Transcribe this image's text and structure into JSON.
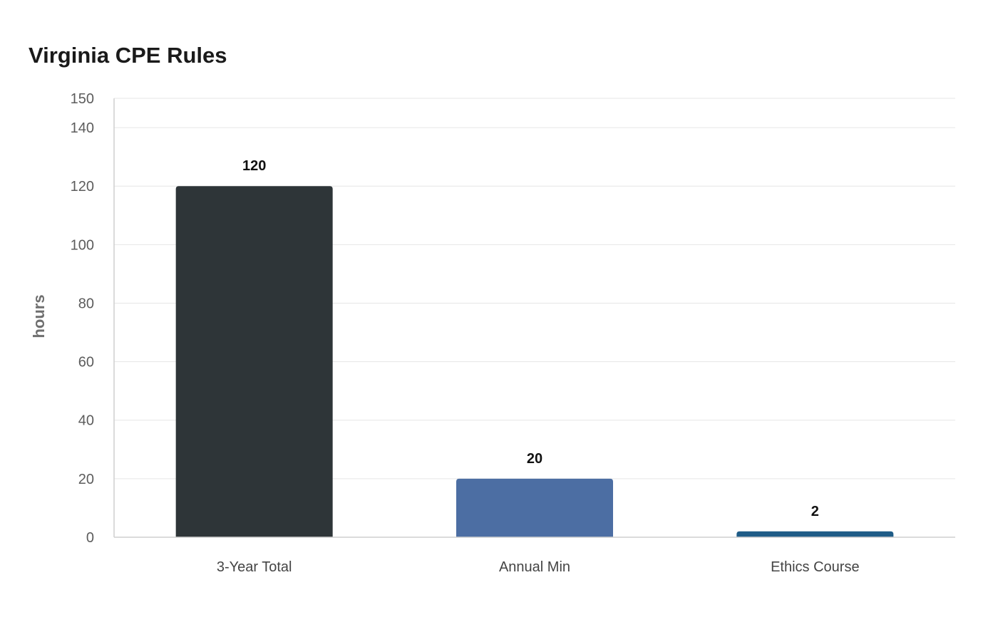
{
  "chart_data": {
    "type": "bar",
    "title": "Virginia CPE Rules",
    "xlabel": "",
    "ylabel": "hours",
    "categories": [
      "3-Year Total",
      "Annual Min",
      "Ethics Course"
    ],
    "values": [
      120,
      20,
      2
    ],
    "data_labels": [
      "120",
      "20",
      "2"
    ],
    "colors": [
      "#2e3538",
      "#4c6ea3",
      "#1f5c87"
    ],
    "ylim": [
      0,
      150
    ],
    "yticks": [
      0,
      20,
      40,
      60,
      80,
      100,
      120,
      140,
      150
    ],
    "grid": true,
    "legend": "none"
  }
}
